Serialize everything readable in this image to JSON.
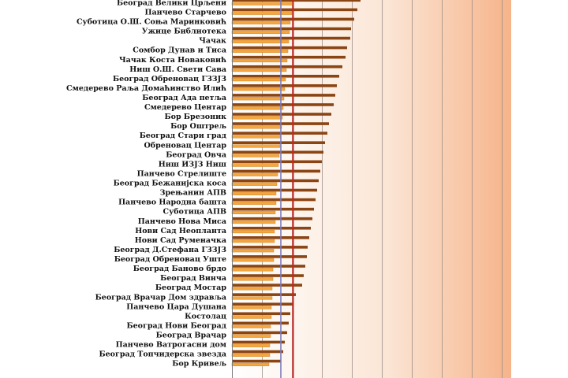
{
  "chart_data": {
    "type": "bar",
    "orientation": "horizontal",
    "categories": [
      "Београд Велики Црљени",
      "Панчево Старчево",
      "Суботица О.Ш. Соња Маринковић",
      "Ужице Библиотека",
      "Чачак",
      "Сомбор Дунав и Тиса",
      "Чачак Коста Новаковић",
      "Ниш О.Ш. Свети Сава",
      "Београд Обреновац ГЗЗЈЗ",
      "Смедерево Раља Домаћинство Илић",
      "Београд Ада петља",
      "Смедерево Центар",
      "Бор Брезоник",
      "Бор Оштрељ",
      "Београд Стари град",
      "Обреновац Центар",
      "Београд Овча",
      "Ниш ИЗЈЗ Ниш",
      "Панчево Стрелиште",
      "Београд Бежанијска коса",
      "Зрењанин АПВ",
      "Панчево Народна башта",
      "Суботица АПВ",
      "Панчево Нова Миса",
      "Нови Сад Неопланта",
      "Нови Сад Руменачка",
      "Београд  Д.Стефана ГЗЗЈЗ",
      "Београд Обреновац Уште",
      "Београд Баново брдо",
      "Београд Винча",
      "Београд Мостар",
      "Београд Врачар Дом здравља",
      "Панчево Цара Душана",
      "Костолац",
      "Београд Нови Београд",
      "Београд Врачар",
      "Панчево Ватрогасни дом",
      "Београд Топчидерска звезда",
      "Бор Кривељ"
    ],
    "series": [
      {
        "color": "#8b4513",
        "values": [
          163,
          159,
          155,
          151,
          150,
          146,
          144,
          140,
          136,
          133,
          131,
          129,
          126,
          123,
          121,
          118,
          116,
          114,
          112,
          110,
          108,
          106,
          104,
          102,
          100,
          98,
          96,
          95,
          93,
          91,
          89,
          81,
          77,
          74,
          72,
          70,
          67,
          65,
          62
        ]
      },
      {
        "color": "#f4a640",
        "values": [
          78,
          76,
          74,
          73,
          72,
          71,
          70,
          69,
          68,
          67,
          66,
          65,
          64,
          63,
          62,
          61,
          60,
          59,
          58,
          57,
          56,
          56,
          55,
          55,
          54,
          54,
          53,
          53,
          52,
          52,
          51,
          51,
          50,
          50,
          49,
          49,
          48,
          48,
          47
        ]
      }
    ],
    "reference_lines": [
      {
        "value": 40,
        "color": "#7b7bbf"
      },
      {
        "value": 50,
        "color": "#d02020"
      }
    ],
    "xlim": [
      0,
      240
    ],
    "grid": true,
    "colors": {
      "bar_dark": "#8b4513",
      "bar_light": "#f4a640",
      "gradient_start": "#ffffff",
      "gradient_end": "#f6b48a"
    }
  }
}
